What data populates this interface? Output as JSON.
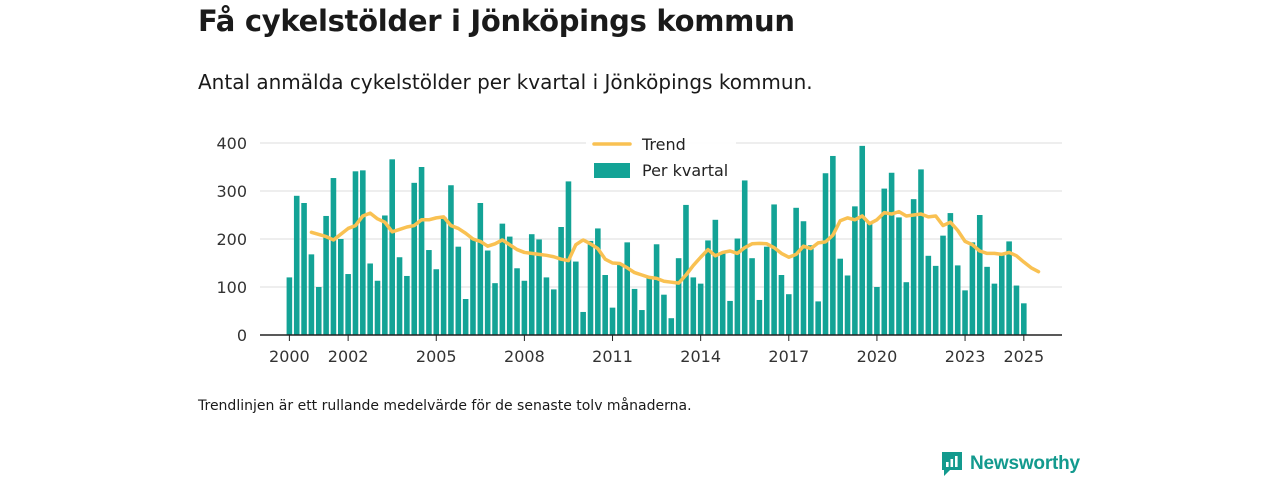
{
  "title": "Få cykelstölder i Jönköpings kommun",
  "subtitle": "Antal anmälda cykelstölder per kvartal i Jönköpings kommun.",
  "footnote": "Trendlinjen är ett rullande medelvärde för de senaste tolv månaderna.",
  "brand": {
    "name": "Newsworthy",
    "color": "#139a8e"
  },
  "colors": {
    "bars": "#13a396",
    "trend": "#f9c152",
    "grid": "#dddddd",
    "axis": "#222222"
  },
  "chart_data": {
    "type": "bar",
    "x_ticks": [
      2000,
      2002,
      2005,
      2008,
      2011,
      2014,
      2017,
      2020,
      2023,
      2025
    ],
    "y_ticks": [
      0,
      100,
      200,
      300,
      400
    ],
    "ylim": [
      0,
      400
    ],
    "xlim": [
      1999.0,
      2026.3
    ],
    "grid": true,
    "legend_position": "top-center",
    "series": [
      {
        "name": "Per kvartal",
        "type": "bar",
        "x_start": 2000.0,
        "x_step": 0.25,
        "values": [
          120,
          290,
          275,
          168,
          100,
          248,
          327,
          200,
          127,
          341,
          343,
          149,
          113,
          249,
          366,
          162,
          123,
          317,
          350,
          177,
          137,
          246,
          312,
          184,
          75,
          200,
          275,
          176,
          108,
          232,
          205,
          139,
          113,
          210,
          199,
          120,
          95,
          225,
          320,
          153,
          48,
          196,
          222,
          125,
          57,
          146,
          193,
          96,
          52,
          120,
          189,
          84,
          35,
          160,
          271,
          120,
          107,
          197,
          240,
          171,
          71,
          201,
          322,
          160,
          73,
          184,
          272,
          125,
          85,
          265,
          237,
          187,
          70,
          337,
          373,
          159,
          124,
          268,
          394,
          234,
          100,
          305,
          338,
          245,
          110,
          283,
          345,
          165,
          144,
          207,
          254,
          145,
          93,
          193,
          250,
          142,
          107,
          166,
          195,
          103,
          66
        ]
      },
      {
        "name": "Trend",
        "type": "line",
        "points": [
          [
            2000.75,
            214
          ],
          [
            2001.25,
            205
          ],
          [
            2001.5,
            198
          ],
          [
            2001.75,
            210
          ],
          [
            2002.0,
            222
          ],
          [
            2002.25,
            228
          ],
          [
            2002.5,
            248
          ],
          [
            2002.75,
            254
          ],
          [
            2003.0,
            242
          ],
          [
            2003.25,
            235
          ],
          [
            2003.5,
            215
          ],
          [
            2003.75,
            220
          ],
          [
            2004.0,
            225
          ],
          [
            2004.25,
            228
          ],
          [
            2004.5,
            240
          ],
          [
            2004.75,
            240
          ],
          [
            2005.0,
            244
          ],
          [
            2005.25,
            246
          ],
          [
            2005.5,
            228
          ],
          [
            2005.75,
            222
          ],
          [
            2006.0,
            212
          ],
          [
            2006.25,
            200
          ],
          [
            2006.5,
            195
          ],
          [
            2006.75,
            185
          ],
          [
            2007.0,
            190
          ],
          [
            2007.25,
            198
          ],
          [
            2007.5,
            188
          ],
          [
            2007.75,
            178
          ],
          [
            2008.0,
            172
          ],
          [
            2008.25,
            170
          ],
          [
            2008.5,
            168
          ],
          [
            2008.75,
            166
          ],
          [
            2009.0,
            163
          ],
          [
            2009.25,
            158
          ],
          [
            2009.5,
            155
          ],
          [
            2009.75,
            188
          ],
          [
            2010.0,
            198
          ],
          [
            2010.25,
            190
          ],
          [
            2010.5,
            180
          ],
          [
            2010.75,
            158
          ],
          [
            2011.0,
            150
          ],
          [
            2011.25,
            149
          ],
          [
            2011.5,
            140
          ],
          [
            2011.75,
            130
          ],
          [
            2012.0,
            125
          ],
          [
            2012.25,
            120
          ],
          [
            2012.5,
            118
          ],
          [
            2012.75,
            112
          ],
          [
            2013.0,
            110
          ],
          [
            2013.25,
            108
          ],
          [
            2013.5,
            125
          ],
          [
            2013.75,
            145
          ],
          [
            2014.0,
            162
          ],
          [
            2014.25,
            178
          ],
          [
            2014.5,
            165
          ],
          [
            2014.75,
            172
          ],
          [
            2015.0,
            175
          ],
          [
            2015.25,
            170
          ],
          [
            2015.5,
            182
          ],
          [
            2015.75,
            190
          ],
          [
            2016.0,
            191
          ],
          [
            2016.25,
            190
          ],
          [
            2016.5,
            182
          ],
          [
            2016.75,
            170
          ],
          [
            2017.0,
            162
          ],
          [
            2017.25,
            168
          ],
          [
            2017.5,
            185
          ],
          [
            2017.75,
            180
          ],
          [
            2018.0,
            192
          ],
          [
            2018.25,
            194
          ],
          [
            2018.5,
            208
          ],
          [
            2018.75,
            238
          ],
          [
            2019.0,
            244
          ],
          [
            2019.25,
            240
          ],
          [
            2019.5,
            248
          ],
          [
            2019.75,
            232
          ],
          [
            2020.0,
            240
          ],
          [
            2020.25,
            255
          ],
          [
            2020.5,
            252
          ],
          [
            2020.75,
            257
          ],
          [
            2021.0,
            248
          ],
          [
            2021.25,
            250
          ],
          [
            2021.5,
            252
          ],
          [
            2021.75,
            246
          ],
          [
            2022.0,
            248
          ],
          [
            2022.25,
            228
          ],
          [
            2022.5,
            235
          ],
          [
            2022.75,
            218
          ],
          [
            2023.0,
            195
          ],
          [
            2023.25,
            188
          ],
          [
            2023.5,
            175
          ],
          [
            2023.75,
            170
          ],
          [
            2024.0,
            170
          ],
          [
            2024.25,
            168
          ],
          [
            2024.5,
            172
          ],
          [
            2024.75,
            165
          ],
          [
            2025.0,
            152
          ],
          [
            2025.25,
            140
          ],
          [
            2025.5,
            132
          ]
        ]
      }
    ]
  }
}
